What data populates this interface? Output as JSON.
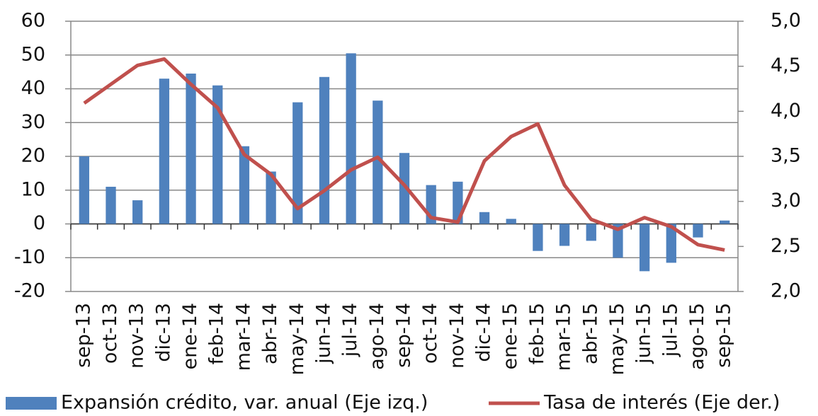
{
  "chart_data": {
    "type": "bar_line",
    "categories": [
      "sep-13",
      "oct-13",
      "nov-13",
      "dic-13",
      "ene-14",
      "feb-14",
      "mar-14",
      "abr-14",
      "may-14",
      "jun-14",
      "jul-14",
      "ago-14",
      "sep-14",
      "oct-14",
      "nov-14",
      "dic-14",
      "ene-15",
      "feb-15",
      "mar-15",
      "abr-15",
      "may-15",
      "jun-15",
      "jul-15",
      "ago-15",
      "sep-15"
    ],
    "series": [
      {
        "name": "Expansión crédito, var. anual (Eje izq.)",
        "type": "bar",
        "color": "#4f81bd",
        "values": [
          20,
          11,
          7,
          43,
          44.5,
          41,
          23,
          15.5,
          36,
          43.5,
          50.5,
          36.5,
          21,
          11.5,
          12.5,
          3.5,
          1.5,
          -8,
          -6.5,
          -5,
          -10,
          -14,
          -11.5,
          -4,
          1
        ]
      },
      {
        "name": "Tasa de interés (Eje der.)",
        "type": "line",
        "axis": "y2",
        "color": "#c0504d",
        "values": [
          4.09,
          4.3,
          4.51,
          4.58,
          4.3,
          4.04,
          3.52,
          3.3,
          2.92,
          3.12,
          3.35,
          3.49,
          3.18,
          2.82,
          2.77,
          3.45,
          3.72,
          3.86,
          3.18,
          2.8,
          2.69,
          2.82,
          2.72,
          2.52,
          2.46
        ]
      }
    ],
    "ylim": [
      -20,
      60
    ],
    "yticks": [
      -20,
      -10,
      0,
      10,
      20,
      30,
      40,
      50,
      60
    ],
    "y2lim": [
      2,
      5
    ],
    "y2ticks": [
      {
        "value": 2,
        "label": "2,0"
      },
      {
        "value": 2.5,
        "label": "2,5"
      },
      {
        "value": 3,
        "label": "3,0"
      },
      {
        "value": 3.5,
        "label": "3,5"
      },
      {
        "value": 4,
        "label": "4,0"
      },
      {
        "value": 4.5,
        "label": "4,5"
      },
      {
        "value": 5,
        "label": "5,0"
      }
    ],
    "grid": true
  }
}
